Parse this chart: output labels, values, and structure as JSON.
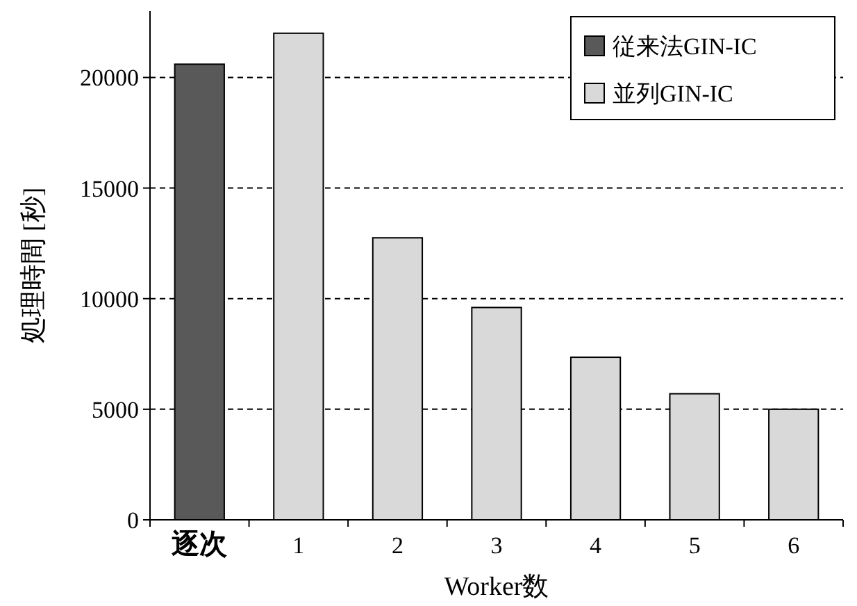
{
  "chart_data": {
    "type": "bar",
    "xlabel": "Worker数",
    "ylabel": "処理時間 [秒]",
    "categories": [
      "逐次",
      "1",
      "2",
      "3",
      "4",
      "5",
      "6"
    ],
    "series": [
      {
        "name": "従来法GIN-IC",
        "color": "#595959",
        "values": [
          20600,
          null,
          null,
          null,
          null,
          null,
          null
        ]
      },
      {
        "name": "並列GIN-IC",
        "color": "#d9d9d9",
        "values": [
          null,
          22000,
          12750,
          9600,
          7350,
          5700,
          5000
        ]
      }
    ],
    "ylim": [
      0,
      23000
    ],
    "yticks": [
      0,
      5000,
      10000,
      15000,
      20000
    ],
    "grid": "y",
    "legend": "top right"
  }
}
